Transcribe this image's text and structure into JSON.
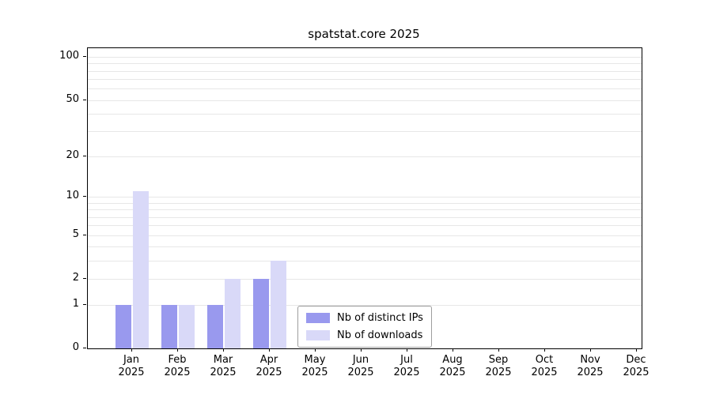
{
  "title": "spatstat.core 2025",
  "chart_data": {
    "type": "bar",
    "title": "spatstat.core 2025",
    "year": "2025",
    "categories": [
      "Jan",
      "Feb",
      "Mar",
      "Apr",
      "May",
      "Jun",
      "Jul",
      "Aug",
      "Sep",
      "Oct",
      "Nov",
      "Dec"
    ],
    "series": [
      {
        "name": "Nb of distinct IPs",
        "color": "#9999ee",
        "values": [
          1,
          1,
          1,
          2,
          0,
          0,
          0,
          0,
          0,
          0,
          0,
          0
        ]
      },
      {
        "name": "Nb of downloads",
        "color": "#d9d9f8",
        "values": [
          11,
          1,
          2,
          3,
          0,
          0,
          0,
          0,
          0,
          0,
          0,
          0
        ]
      }
    ],
    "y_scale": "log10(1+x)",
    "ylim": [
      0,
      100
    ],
    "y_ticks": [
      0,
      1,
      2,
      5,
      10,
      20,
      50,
      100
    ],
    "y_gridlines": [
      1,
      2,
      3,
      4,
      5,
      6,
      7,
      8,
      9,
      10,
      20,
      30,
      40,
      50,
      60,
      70,
      80,
      90,
      100
    ],
    "grid_color": "#e7e7e7",
    "axis_color": "#000000",
    "legend": {
      "entries": [
        "Nb of distinct IPs",
        "Nb of downloads"
      ],
      "position": "bottom-center"
    }
  }
}
